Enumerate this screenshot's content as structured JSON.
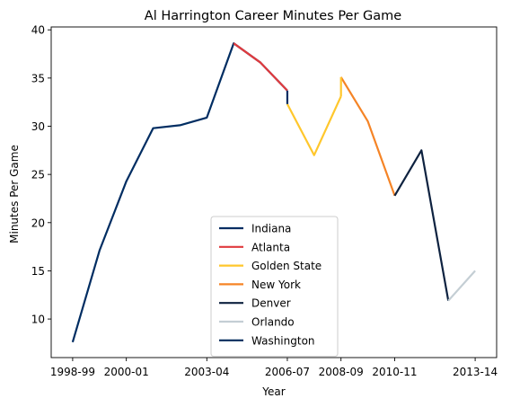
{
  "chart_data": {
    "type": "line",
    "title": "Al Harrington Career Minutes Per Game",
    "xlabel": "Year",
    "ylabel": "Minutes Per Game",
    "seasons": [
      "1998-99",
      "1999-00",
      "2000-01",
      "2001-02",
      "2002-03",
      "2003-04",
      "2004-05",
      "2005-06",
      "2006-07",
      "2007-08",
      "2008-09",
      "2009-10",
      "2010-11",
      "2011-12",
      "2012-13",
      "2013-14"
    ],
    "xticks": [
      "1998-99",
      "2000-01",
      "2003-04",
      "2006-07",
      "2008-09",
      "2010-11",
      "2013-14"
    ],
    "xlim": [
      -0.8,
      15.8
    ],
    "ylim": [
      6,
      40.3
    ],
    "yticks": [
      10,
      15,
      20,
      25,
      30,
      35,
      40
    ],
    "grid": false,
    "legend_position": "lower center",
    "series": [
      {
        "name": "Indiana",
        "color": "#002d62",
        "x": [
          "1998-99",
          "1999-00",
          "2000-01",
          "2001-02",
          "2002-03",
          "2003-04",
          "2004-05",
          "2005-06",
          "2006-07"
        ],
        "y": [
          7.6,
          17.1,
          24.3,
          29.8,
          30.1,
          30.9,
          38.6,
          36.6,
          33.7
        ]
      },
      {
        "name": "Atlanta",
        "color": "#e03a3e",
        "x": [
          "2004-05",
          "2005-06",
          "2006-07"
        ],
        "y": [
          38.6,
          36.6,
          33.7
        ]
      },
      {
        "name": "Golden State",
        "color": "#ffc72c",
        "x": [
          "2006-07",
          "2007-08",
          "2008-09"
        ],
        "y": [
          32.3,
          27.0,
          33.1
        ]
      },
      {
        "name": "New York",
        "color": "#f58426",
        "x": [
          "2008-09",
          "2009-10",
          "2010-11"
        ],
        "y": [
          35.1,
          30.5,
          22.8
        ]
      },
      {
        "name": "Denver",
        "color": "#0e2240",
        "x": [
          "2010-11",
          "2011-12",
          "2012-13"
        ],
        "y": [
          22.8,
          27.5,
          11.9
        ]
      },
      {
        "name": "Orlando",
        "color": "#c4ced4",
        "x": [
          "2012-13"
        ],
        "y": [
          11.9
        ]
      },
      {
        "name": "Washington",
        "color": "#002b5c",
        "x": [
          "2012-13",
          "2013-14"
        ],
        "y": [
          11.9,
          15.0
        ]
      }
    ],
    "connectors": [
      {
        "color": "#002d62",
        "season": "2006-07",
        "y": [
          32.3,
          33.7
        ]
      },
      {
        "color": "#ffc72c",
        "season": "2008-09",
        "y": [
          33.1,
          35.1
        ]
      }
    ],
    "washington_color_override": "#c4ced4"
  }
}
